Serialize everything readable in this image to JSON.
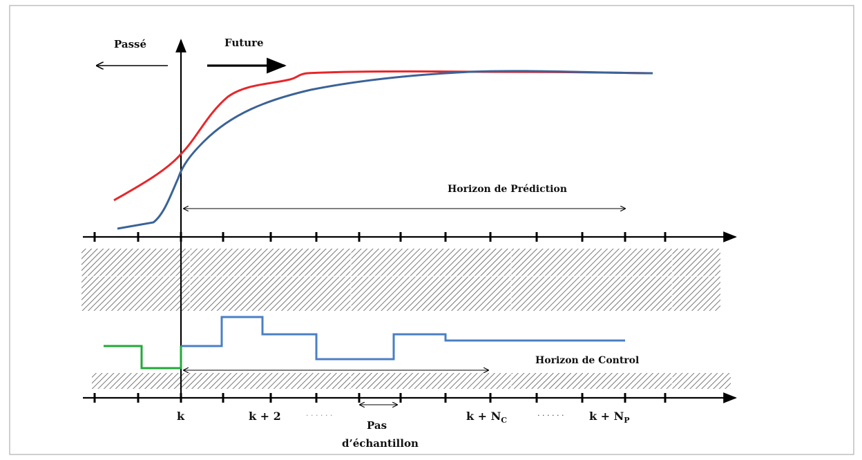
{
  "labels": {
    "past": "Passé",
    "future": "Future",
    "prediction_horizon": "Horizon de Prédiction",
    "control_horizon": "Horizon de Control",
    "sample_step_line1": "Pas",
    "sample_step_line2": "d’échantillon"
  },
  "axis_labels": {
    "k": "k",
    "k2": "k + 2",
    "dots1": "· · ·  · · ·",
    "knc_main": "k + N",
    "knc_sub": "C",
    "dots2": "· · ·  · · ·",
    "knp_main": "k + N",
    "knp_sub": "P"
  },
  "colors": {
    "reference": "#e8262a",
    "predicted_output": "#3a6397",
    "control_future": "#4a7fc4",
    "control_past": "#22a83a",
    "axis": "#000000",
    "hatch": "#555555",
    "frame": "#bfbfbf"
  },
  "series_names": [
    "reference-curve",
    "predicted-output-curve",
    "future-control-signal",
    "past-control-signal"
  ]
}
